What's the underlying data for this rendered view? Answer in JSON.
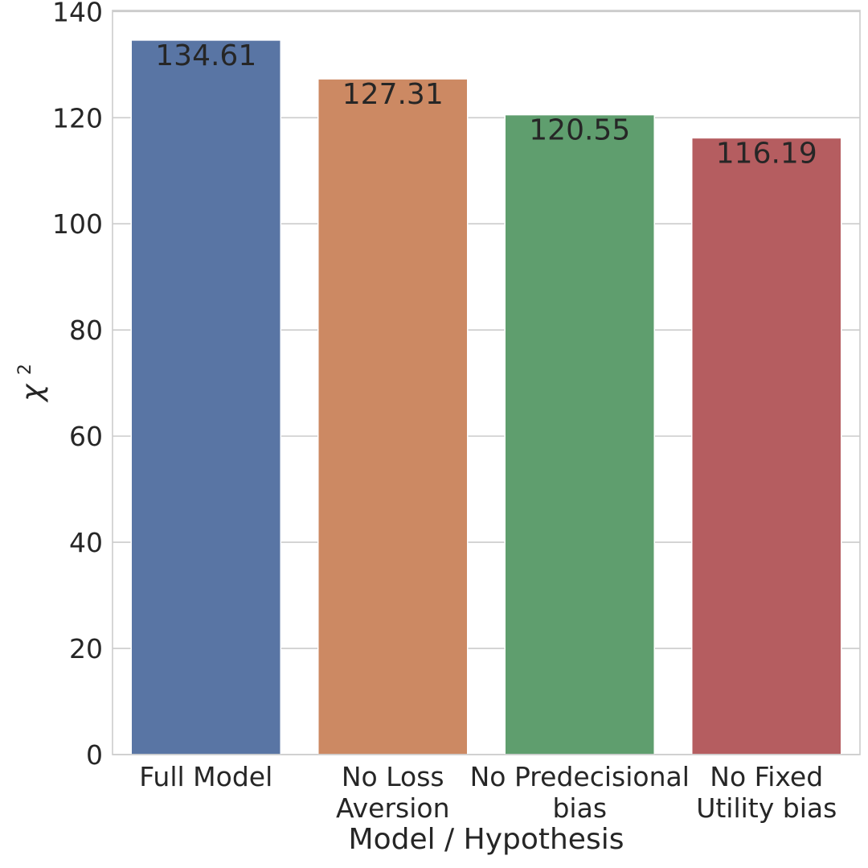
{
  "chart_data": {
    "type": "bar",
    "title": "",
    "xlabel": "Model / Hypothesis",
    "ylabel_base": "χ",
    "ylabel_sup": "2",
    "categories": [
      [
        "Full Model"
      ],
      [
        "No Loss",
        "Aversion"
      ],
      [
        "No Predecisional",
        "bias"
      ],
      [
        "No Fixed",
        "Utility bias"
      ]
    ],
    "values": [
      134.61,
      127.31,
      120.55,
      116.19
    ],
    "value_labels": [
      "134.61",
      "127.31",
      "120.55",
      "116.19"
    ],
    "colors": [
      "#5975a4",
      "#cc8963",
      "#5f9e6e",
      "#b55d60"
    ],
    "ylim": [
      0,
      140.2
    ],
    "yticks": [
      0,
      20,
      40,
      60,
      80,
      100,
      120,
      140
    ],
    "grid": true,
    "legend": false
  }
}
